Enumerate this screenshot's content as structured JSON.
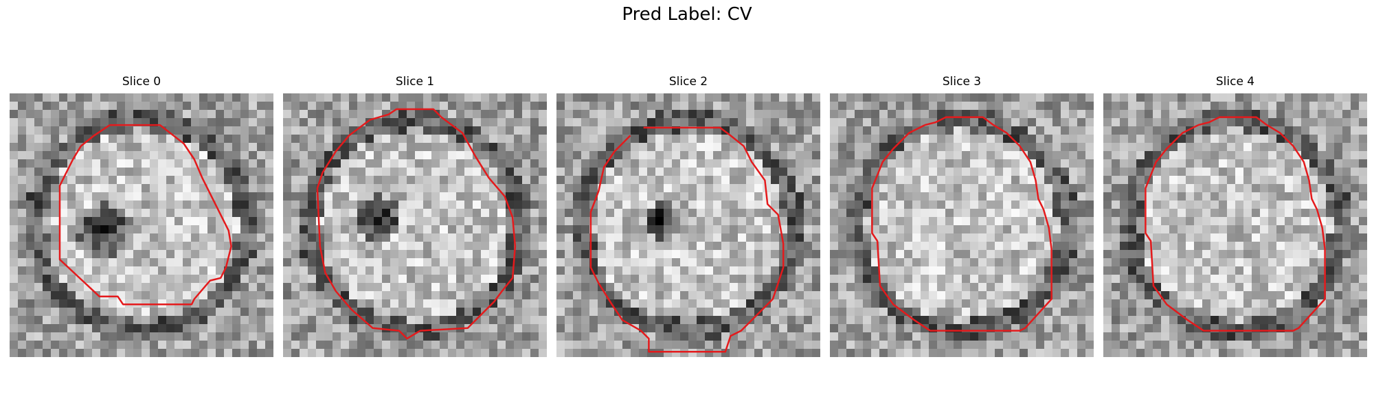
{
  "figure": {
    "title": "Pred Label: CV"
  },
  "colors": {
    "contour": "#e41a1c"
  },
  "panels": [
    {
      "title": "Slice 0",
      "seed": 11,
      "dark_spot": [
        0.36,
        0.52,
        0.1
      ],
      "contour": [
        [
          0.38,
          0.12
        ],
        [
          0.57,
          0.12
        ],
        [
          0.66,
          0.19
        ],
        [
          0.7,
          0.25
        ],
        [
          0.73,
          0.32
        ],
        [
          0.78,
          0.42
        ],
        [
          0.83,
          0.52
        ],
        [
          0.84,
          0.58
        ],
        [
          0.82,
          0.66
        ],
        [
          0.8,
          0.7
        ],
        [
          0.76,
          0.71
        ],
        [
          0.7,
          0.78
        ],
        [
          0.69,
          0.8
        ],
        [
          0.43,
          0.8
        ],
        [
          0.41,
          0.77
        ],
        [
          0.34,
          0.77
        ],
        [
          0.19,
          0.63
        ],
        [
          0.19,
          0.35
        ],
        [
          0.24,
          0.25
        ],
        [
          0.27,
          0.2
        ],
        [
          0.32,
          0.16
        ]
      ]
    },
    {
      "title": "Slice 1",
      "seed": 23,
      "dark_spot": [
        0.36,
        0.48,
        0.09
      ],
      "contour": [
        [
          0.33,
          0.1
        ],
        [
          0.4,
          0.08
        ],
        [
          0.43,
          0.06
        ],
        [
          0.57,
          0.06
        ],
        [
          0.6,
          0.09
        ],
        [
          0.68,
          0.15
        ],
        [
          0.73,
          0.24
        ],
        [
          0.78,
          0.32
        ],
        [
          0.84,
          0.39
        ],
        [
          0.87,
          0.47
        ],
        [
          0.88,
          0.58
        ],
        [
          0.87,
          0.7
        ],
        [
          0.83,
          0.75
        ],
        [
          0.8,
          0.79
        ],
        [
          0.73,
          0.86
        ],
        [
          0.7,
          0.89
        ],
        [
          0.52,
          0.9
        ],
        [
          0.47,
          0.93
        ],
        [
          0.44,
          0.9
        ],
        [
          0.34,
          0.89
        ],
        [
          0.26,
          0.82
        ],
        [
          0.2,
          0.75
        ],
        [
          0.16,
          0.68
        ],
        [
          0.14,
          0.58
        ],
        [
          0.13,
          0.36
        ],
        [
          0.15,
          0.3
        ],
        [
          0.2,
          0.22
        ],
        [
          0.25,
          0.16
        ]
      ]
    },
    {
      "title": "Slice 2",
      "seed": 37,
      "dark_spot": [
        0.4,
        0.48,
        0.07
      ],
      "contour": [
        [
          0.33,
          0.13
        ],
        [
          0.62,
          0.13
        ],
        [
          0.66,
          0.16
        ],
        [
          0.71,
          0.2
        ],
        [
          0.74,
          0.26
        ],
        [
          0.79,
          0.33
        ],
        [
          0.8,
          0.42
        ],
        [
          0.84,
          0.46
        ],
        [
          0.86,
          0.57
        ],
        [
          0.86,
          0.66
        ],
        [
          0.84,
          0.72
        ],
        [
          0.82,
          0.78
        ],
        [
          0.77,
          0.83
        ],
        [
          0.74,
          0.86
        ],
        [
          0.7,
          0.9
        ],
        [
          0.66,
          0.92
        ],
        [
          0.64,
          0.98
        ],
        [
          0.35,
          0.98
        ],
        [
          0.35,
          0.93
        ],
        [
          0.32,
          0.9
        ],
        [
          0.25,
          0.86
        ],
        [
          0.21,
          0.8
        ],
        [
          0.16,
          0.72
        ],
        [
          0.13,
          0.66
        ],
        [
          0.13,
          0.45
        ],
        [
          0.16,
          0.37
        ],
        [
          0.18,
          0.28
        ],
        [
          0.22,
          0.22
        ],
        [
          0.28,
          0.16
        ]
      ]
    },
    {
      "title": "Slice 3",
      "seed": 49,
      "dark_spot": [
        0.5,
        0.5,
        0.0
      ],
      "contour": [
        [
          0.36,
          0.12
        ],
        [
          0.4,
          0.11
        ],
        [
          0.44,
          0.09
        ],
        [
          0.58,
          0.09
        ],
        [
          0.62,
          0.12
        ],
        [
          0.67,
          0.15
        ],
        [
          0.72,
          0.2
        ],
        [
          0.76,
          0.26
        ],
        [
          0.78,
          0.33
        ],
        [
          0.79,
          0.4
        ],
        [
          0.81,
          0.44
        ],
        [
          0.83,
          0.51
        ],
        [
          0.84,
          0.59
        ],
        [
          0.84,
          0.78
        ],
        [
          0.74,
          0.89
        ],
        [
          0.72,
          0.9
        ],
        [
          0.38,
          0.9
        ],
        [
          0.32,
          0.86
        ],
        [
          0.24,
          0.8
        ],
        [
          0.19,
          0.73
        ],
        [
          0.18,
          0.56
        ],
        [
          0.16,
          0.53
        ],
        [
          0.16,
          0.36
        ],
        [
          0.2,
          0.26
        ],
        [
          0.24,
          0.21
        ],
        [
          0.3,
          0.15
        ]
      ]
    },
    {
      "title": "Slice 4",
      "seed": 61,
      "dark_spot": [
        0.5,
        0.5,
        0.0
      ],
      "contour": [
        [
          0.36,
          0.12
        ],
        [
          0.4,
          0.11
        ],
        [
          0.44,
          0.09
        ],
        [
          0.58,
          0.09
        ],
        [
          0.62,
          0.12
        ],
        [
          0.67,
          0.15
        ],
        [
          0.72,
          0.2
        ],
        [
          0.76,
          0.26
        ],
        [
          0.78,
          0.33
        ],
        [
          0.79,
          0.4
        ],
        [
          0.81,
          0.44
        ],
        [
          0.83,
          0.51
        ],
        [
          0.84,
          0.59
        ],
        [
          0.84,
          0.78
        ],
        [
          0.74,
          0.89
        ],
        [
          0.72,
          0.9
        ],
        [
          0.38,
          0.9
        ],
        [
          0.32,
          0.86
        ],
        [
          0.24,
          0.8
        ],
        [
          0.19,
          0.73
        ],
        [
          0.18,
          0.56
        ],
        [
          0.16,
          0.53
        ],
        [
          0.16,
          0.36
        ],
        [
          0.2,
          0.26
        ],
        [
          0.24,
          0.21
        ],
        [
          0.3,
          0.15
        ]
      ]
    }
  ]
}
